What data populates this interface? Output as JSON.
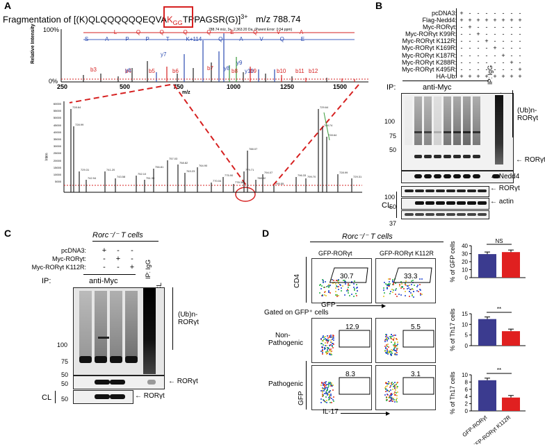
{
  "panels": {
    "A": "A",
    "B": "B",
    "C": "C",
    "D": "D"
  },
  "panelA": {
    "title_prefix": "Fragmentation of [(K)QLQQQQQQEQVA",
    "title_K": "K",
    "title_sub": "GG",
    "title_suffix": "TPPAGSR(G)]",
    "title_charge": "3+",
    "title_mz": "m/z 788.74",
    "yaxis_label": "Relative Intensity",
    "y_top": "100%",
    "y_bottom": "0%",
    "xaxis_label": "m/z",
    "x_ticks": [
      "250",
      "500",
      "750",
      "1000",
      "1250",
      "1500"
    ],
    "precursor_note": "788.74 m/z, 3+, 2,363.20 Da, (Parent Error: 0.54 ppm)",
    "seq_top": [
      "L",
      "Q",
      "Q",
      "Q",
      "Q",
      "E",
      "Q",
      "V",
      "A"
    ],
    "seq_bottom": [
      "S",
      "A",
      "P",
      "P",
      "T",
      "K+114",
      "Q",
      "A",
      "V",
      "Q",
      "E"
    ],
    "b_ions": [
      "b3",
      "b4",
      "b5",
      "b6",
      "b7",
      "b8",
      "b9",
      "b10",
      "b11",
      "b12"
    ],
    "y_ions": [
      "y6",
      "y7",
      "y8",
      "y9",
      "y10"
    ],
    "zoom_ylabel": "Inten",
    "zoom_yticks": [
      "60000",
      "55000",
      "50000",
      "45000",
      "40000",
      "35000",
      "30000",
      "25000",
      "20000",
      "15000",
      "10000",
      "5000"
    ],
    "zoom_peaks": [
      "728.64",
      "728.99",
      "729.31",
      "742.94",
      "741.20",
      "743.58",
      "752.10",
      "751.39",
      "756.81",
      "757.03",
      "758.82",
      "763.23",
      "764.90",
      "770.04",
      "775.90",
      "778.38",
      "779.71",
      "788.07",
      "788.82",
      "794.07",
      "795.55",
      "796.33",
      "799.70",
      "729.64",
      "788.74"
    ]
  },
  "panelB": {
    "rows": [
      {
        "label": "pcDNA3:",
        "signs": [
          "+",
          "-",
          "-",
          "-",
          "-",
          "-",
          "-",
          "-"
        ]
      },
      {
        "label": "Flag-Nedd4:",
        "signs": [
          "+",
          "+",
          "+",
          "+",
          "+",
          "+",
          "+",
          "+"
        ]
      },
      {
        "label": "Myc-RORγt:",
        "signs": [
          "-",
          "+",
          "-",
          "-",
          "-",
          "-",
          "-",
          "-"
        ]
      },
      {
        "label": "Myc-RORγt K99R:",
        "signs": [
          "-",
          "-",
          "+",
          "-",
          "-",
          "-",
          "-",
          "-"
        ]
      },
      {
        "label": "Myc-RORγt K112R:",
        "signs": [
          "-",
          "-",
          "-",
          "+",
          "-",
          "-",
          "-",
          "-"
        ]
      },
      {
        "label": "Myc-RORγt K169R:",
        "signs": [
          "-",
          "-",
          "-",
          "-",
          "+",
          "-",
          "-",
          "-"
        ]
      },
      {
        "label": "Myc-RORγt K187R:",
        "signs": [
          "-",
          "-",
          "-",
          "-",
          "-",
          "+",
          "-",
          "-"
        ]
      },
      {
        "label": "Myc-RORγt K288R:",
        "signs": [
          "-",
          "-",
          "-",
          "-",
          "-",
          "-",
          "+",
          "-"
        ]
      },
      {
        "label": "Myc-RORγt K495R:",
        "signs": [
          "-",
          "-",
          "-",
          "-",
          "-",
          "-",
          "-",
          "+"
        ]
      },
      {
        "label": "HA-Ub:",
        "signs": [
          "+",
          "+",
          "+",
          "+",
          "+",
          "+",
          "+",
          "+"
        ]
      }
    ],
    "ip_label": "IP:",
    "anti_myc": "anti-Myc",
    "ip_igg": "IP: IgG",
    "cl": "CL",
    "mw": [
      "100",
      "75",
      "50",
      "100",
      "50",
      "37"
    ],
    "ub_label_1": "(Ub)n-",
    "ub_label_2": "RORγt",
    "ror_label": "RORγt",
    "nedd4_label": "Nedd4",
    "ror_label2": "RORγt",
    "actin_label": "actin",
    "cl_side": "CL"
  },
  "panelC": {
    "header": "Rorc⁻/⁻ T cells",
    "rows": [
      {
        "label": "pcDNA3:",
        "signs": [
          "+",
          "-",
          "-"
        ]
      },
      {
        "label": "Myc-RORγt:",
        "signs": [
          "-",
          "+",
          "-"
        ]
      },
      {
        "label": "Myc-RORγt K112R:",
        "signs": [
          "-",
          "-",
          "+"
        ]
      }
    ],
    "ip_label": "IP:",
    "anti_myc": "anti-Myc",
    "ip_igg": "IP: IgG",
    "cl": "CL",
    "mw": [
      "100",
      "75",
      "50",
      "50",
      "50"
    ],
    "ub_label_1": "(Ub)n-",
    "ub_label_2": "RORγt",
    "ror_label": "RORγt",
    "ror_label2": "RORγt",
    "cl_side": "CL"
  },
  "panelD": {
    "header": "Rorc⁻/⁻ T cells",
    "col1": "GFP-RORγt",
    "col2": "GFP-RORγt K112R",
    "cd4": "CD4",
    "gfp_x": "GFP",
    "gated": "Gated on GFP⁺ cells",
    "nonpath_1": "Non-",
    "nonpath_2": "Pathogenic",
    "path": "Pathogenic",
    "gfp_y": "GFP",
    "il17": "IL-17",
    "facs_values": [
      "30.7",
      "33.3",
      "12.9",
      "5.5",
      "8.3",
      "3.1"
    ],
    "bar_ylabels": [
      "% of GFP cells",
      "% of Th17 cells",
      "% of Th17 cells"
    ],
    "sig": [
      "NS",
      "**",
      "**"
    ],
    "xcats": [
      "GFP-RORγt",
      "GFP-RORγt K112R"
    ],
    "colors": {
      "wt": "#3b3b8f",
      "mut": "#e02020"
    }
  },
  "chart_data": [
    {
      "type": "bar",
      "categories": [
        "GFP-RORγt",
        "GFP-RORγt K112R"
      ],
      "values": [
        29.5,
        32
      ],
      "ylabel": "% of GFP cells",
      "ylim": [
        0,
        40
      ],
      "yticks": [
        "0",
        "10",
        "20",
        "30",
        "40"
      ]
    },
    {
      "type": "bar",
      "categories": [
        "GFP-RORγt",
        "GFP-RORγt K112R"
      ],
      "values": [
        12.5,
        6.8
      ],
      "ylabel": "% of Th17 cells",
      "ylim": [
        0,
        15
      ],
      "yticks": [
        "0",
        "5",
        "10",
        "15"
      ]
    },
    {
      "type": "bar",
      "categories": [
        "GFP-RORγt",
        "GFP-RORγt K112R"
      ],
      "values": [
        8.5,
        3.7
      ],
      "ylabel": "% of Th17 cells",
      "ylim": [
        0,
        10
      ],
      "yticks": [
        "0",
        "2",
        "4",
        "6",
        "8",
        "10"
      ]
    }
  ]
}
